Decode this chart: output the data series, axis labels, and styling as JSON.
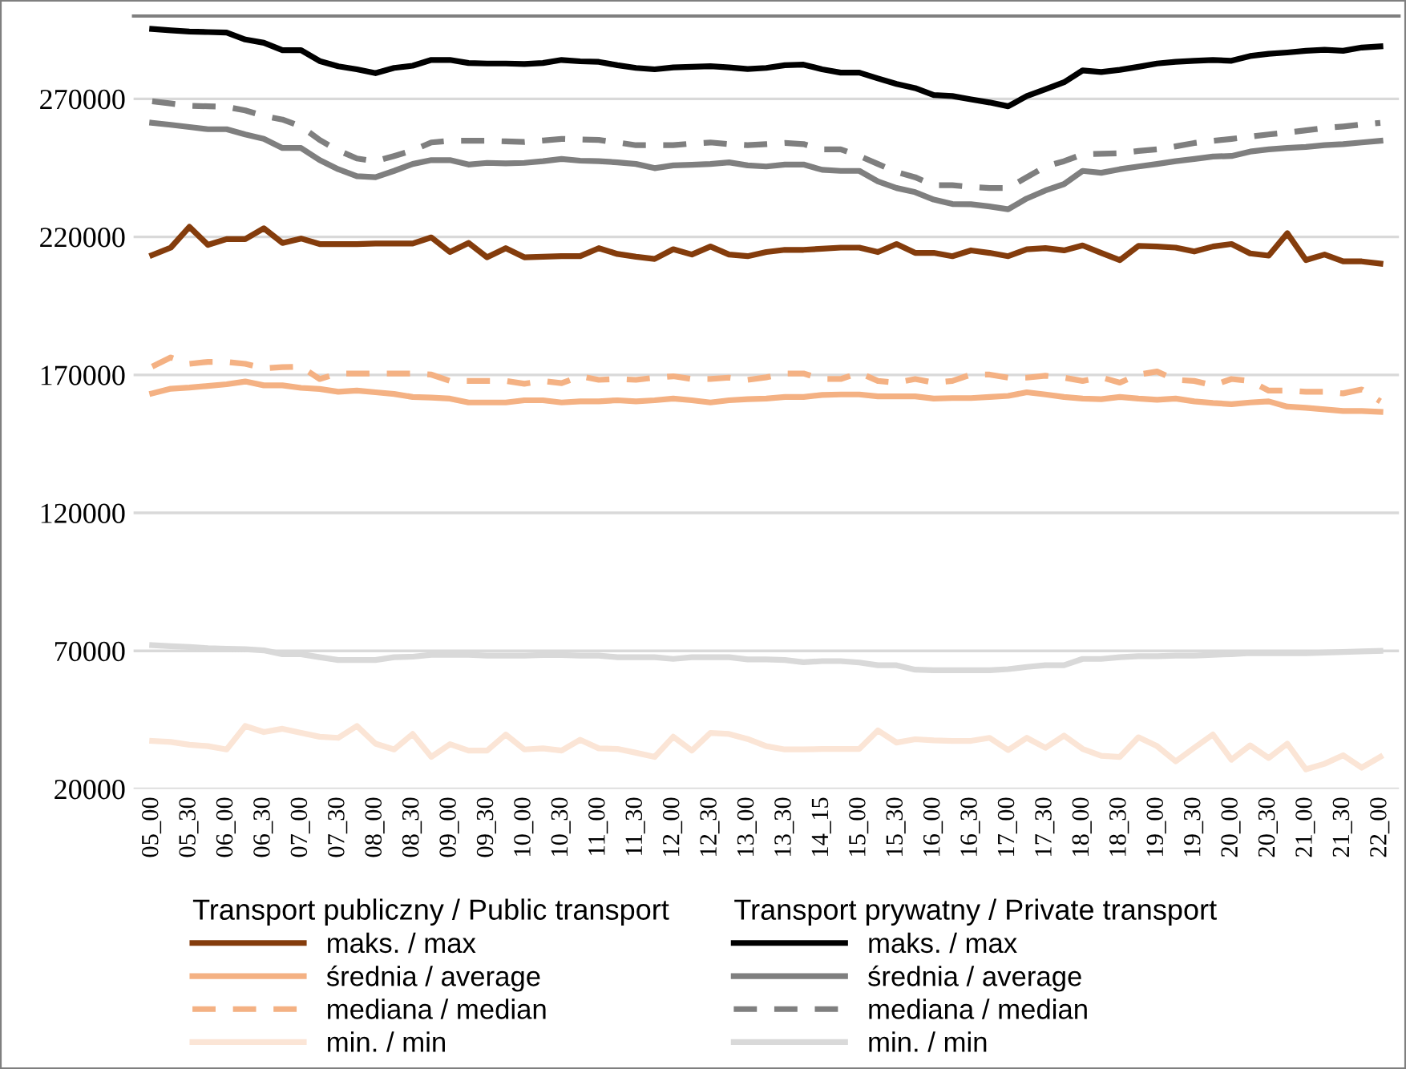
{
  "chart_data": {
    "type": "line",
    "categories": [
      "05_00",
      null,
      "05_30",
      null,
      "06_00",
      null,
      "06_30",
      null,
      "07_00",
      null,
      "07_30",
      null,
      "08_00",
      null,
      "08_30",
      null,
      "09_00",
      null,
      "09_30",
      null,
      "10_00",
      null,
      "10_30",
      null,
      "11_00",
      null,
      "11_30",
      null,
      "12_00",
      null,
      "12_30",
      null,
      "13_00",
      null,
      "13_30",
      null,
      "14_15",
      null,
      "15_00",
      null,
      "15_30",
      null,
      "16_00",
      null,
      "16_30",
      null,
      "17_00",
      null,
      "17_30",
      null,
      "18_00",
      null,
      "18_30",
      null,
      "19_00",
      null,
      "19_30",
      null,
      "20_00",
      null,
      "20_30",
      null,
      "21_00",
      null,
      "21_30",
      null,
      "22_00"
    ],
    "legend_title": [
      "Transport publiczny / Public transport",
      "Transport prywatny / Private transport"
    ],
    "series": [
      {
        "name": "maks. / max",
        "color": "#843c0c",
        "line_style": "solid",
        "values": [
          213400,
          216100,
          223600,
          217100,
          219200,
          219200,
          223100,
          217800,
          219400,
          217400,
          217400,
          217400,
          217600,
          217600,
          217600,
          219800,
          214500,
          217800,
          212600,
          215900,
          212600,
          212800,
          213000,
          213000,
          215900,
          213800,
          212800,
          212000,
          215500,
          213600,
          216500,
          213600,
          213000,
          214500,
          215300,
          215300,
          215700,
          216100,
          216100,
          214500,
          217400,
          214200,
          214200,
          213000,
          215100,
          214200,
          213000,
          215500,
          215900,
          215100,
          216900,
          214200,
          211600,
          216700,
          216500,
          216100,
          214700,
          216500,
          217400,
          214000,
          213200,
          221300,
          211600,
          213600,
          211100,
          211100,
          210300
        ]
      },
      {
        "name": "średnia / average",
        "color": "#f4b183",
        "line_style": "solid",
        "values": [
          163300,
          165000,
          165400,
          166000,
          166600,
          167600,
          166200,
          166200,
          165300,
          164900,
          163900,
          164300,
          163700,
          163100,
          162000,
          161800,
          161400,
          160000,
          160000,
          160000,
          160800,
          160800,
          160000,
          160400,
          160400,
          160800,
          160400,
          160800,
          161400,
          160800,
          160000,
          160800,
          161200,
          161400,
          162000,
          162000,
          162700,
          162900,
          162900,
          162200,
          162200,
          162200,
          161400,
          161600,
          161600,
          162000,
          162400,
          163700,
          162900,
          162000,
          161400,
          161200,
          162000,
          161400,
          161000,
          161400,
          160400,
          159800,
          159400,
          160000,
          160400,
          158500,
          158100,
          157500,
          156900,
          156900,
          156600
        ]
      },
      {
        "name": "mediana / median",
        "color": "#f4b183",
        "line_style": "dashed",
        "values": [
          173000,
          176300,
          174000,
          174700,
          174700,
          174000,
          172400,
          172800,
          173000,
          168500,
          170500,
          170500,
          170500,
          170500,
          170500,
          170100,
          167800,
          167800,
          167800,
          167800,
          166800,
          167800,
          167000,
          169500,
          168200,
          168500,
          168200,
          169000,
          169500,
          168500,
          168500,
          169000,
          168200,
          169100,
          170500,
          170500,
          168500,
          168500,
          170700,
          167800,
          167200,
          168500,
          167200,
          167800,
          170100,
          170100,
          169000,
          169000,
          169700,
          169000,
          167800,
          169100,
          167200,
          170100,
          171200,
          168200,
          167800,
          166200,
          168500,
          167800,
          164300,
          164300,
          163900,
          163900,
          163300,
          164700,
          160400
        ]
      },
      {
        "name": "min. / min",
        "color": "#fbe5d6",
        "line_style": "solid",
        "values": [
          37400,
          37000,
          36000,
          35500,
          34300,
          42800,
          40600,
          41800,
          40300,
          38900,
          38500,
          42800,
          36400,
          34300,
          39900,
          31600,
          36200,
          33900,
          33900,
          39700,
          34300,
          34700,
          33900,
          37800,
          34700,
          34500,
          33100,
          31600,
          38900,
          33900,
          40300,
          39900,
          38100,
          35500,
          34300,
          34300,
          34500,
          34500,
          34500,
          41200,
          36800,
          38000,
          37600,
          37400,
          37400,
          38500,
          34100,
          38500,
          34900,
          39300,
          34500,
          32000,
          31600,
          38700,
          35500,
          30000,
          34900,
          39700,
          30600,
          35800,
          31200,
          36400,
          27100,
          29100,
          32200,
          27700,
          31600
        ]
      },
      {
        "name": "maks. / max",
        "color": "#000000",
        "line_style": "solid",
        "values": [
          295300,
          294800,
          294400,
          294200,
          294000,
          291500,
          290300,
          287600,
          287600,
          283700,
          281800,
          280700,
          279300,
          281200,
          282000,
          284100,
          284100,
          283000,
          282800,
          282800,
          282600,
          283000,
          284100,
          283600,
          283400,
          282200,
          281200,
          280700,
          281400,
          281600,
          281800,
          281400,
          280800,
          281200,
          282200,
          282400,
          280700,
          279500,
          279500,
          277400,
          275400,
          273900,
          271400,
          271000,
          269800,
          268700,
          267300,
          271000,
          273500,
          276000,
          280300,
          279700,
          280500,
          281600,
          282800,
          283400,
          283800,
          284100,
          283800,
          285500,
          286300,
          286800,
          287400,
          287800,
          287400,
          288600,
          289000
        ]
      },
      {
        "name": "średnia / average",
        "color": "#7f7f7f",
        "line_style": "solid",
        "values": [
          261300,
          260600,
          259800,
          259000,
          259000,
          257100,
          255500,
          252200,
          252200,
          247800,
          244500,
          242000,
          241600,
          243900,
          246400,
          247800,
          247800,
          246200,
          246800,
          246600,
          246800,
          247400,
          248200,
          247600,
          247400,
          247000,
          246400,
          244900,
          245900,
          246100,
          246400,
          247000,
          245900,
          245500,
          246200,
          246200,
          244300,
          243900,
          243900,
          240100,
          237700,
          236200,
          233500,
          231900,
          231800,
          231000,
          230000,
          233900,
          236800,
          239100,
          243900,
          243200,
          244500,
          245500,
          246400,
          247400,
          248200,
          249100,
          249300,
          250900,
          251700,
          252200,
          252600,
          253200,
          253600,
          254200,
          254800
        ]
      },
      {
        "name": "mediana / median",
        "color": "#7f7f7f",
        "line_style": "dashed",
        "values": [
          269100,
          268300,
          267500,
          267300,
          267100,
          265800,
          263800,
          262500,
          260000,
          255100,
          251300,
          248400,
          247400,
          249300,
          251300,
          254200,
          254800,
          254800,
          254800,
          254600,
          254400,
          254900,
          255500,
          255300,
          255100,
          254200,
          253200,
          253200,
          253200,
          253800,
          254200,
          253600,
          253200,
          253600,
          254000,
          253600,
          251700,
          251700,
          249300,
          246400,
          243500,
          241600,
          238700,
          238700,
          238100,
          237700,
          237700,
          241600,
          245500,
          247400,
          249900,
          250100,
          250300,
          251100,
          251700,
          252800,
          254000,
          254800,
          255500,
          256300,
          257100,
          257800,
          258600,
          259400,
          260000,
          260700,
          261300
        ]
      },
      {
        "name": "min. / min",
        "color": "#d9d9d9",
        "line_style": "solid",
        "values": [
          72100,
          71700,
          71400,
          71000,
          70800,
          70600,
          70200,
          68800,
          68800,
          67700,
          66700,
          66700,
          66700,
          67700,
          67900,
          68600,
          68600,
          68600,
          68300,
          68300,
          68300,
          68500,
          68500,
          68300,
          68300,
          67700,
          67700,
          67700,
          67100,
          67700,
          67700,
          67700,
          66900,
          66900,
          66700,
          65900,
          66300,
          66300,
          65800,
          64800,
          64800,
          63200,
          63000,
          63000,
          63000,
          63000,
          63400,
          64200,
          64800,
          64800,
          67100,
          67100,
          67700,
          68100,
          68100,
          68300,
          68300,
          68600,
          68800,
          69200,
          69200,
          69200,
          69200,
          69400,
          69600,
          69800,
          70000
        ]
      }
    ],
    "ylim": [
      20000,
      300000
    ],
    "yticks": [
      20000,
      70000,
      120000,
      170000,
      220000,
      270000
    ],
    "grid": "y",
    "legend": "bottom"
  }
}
